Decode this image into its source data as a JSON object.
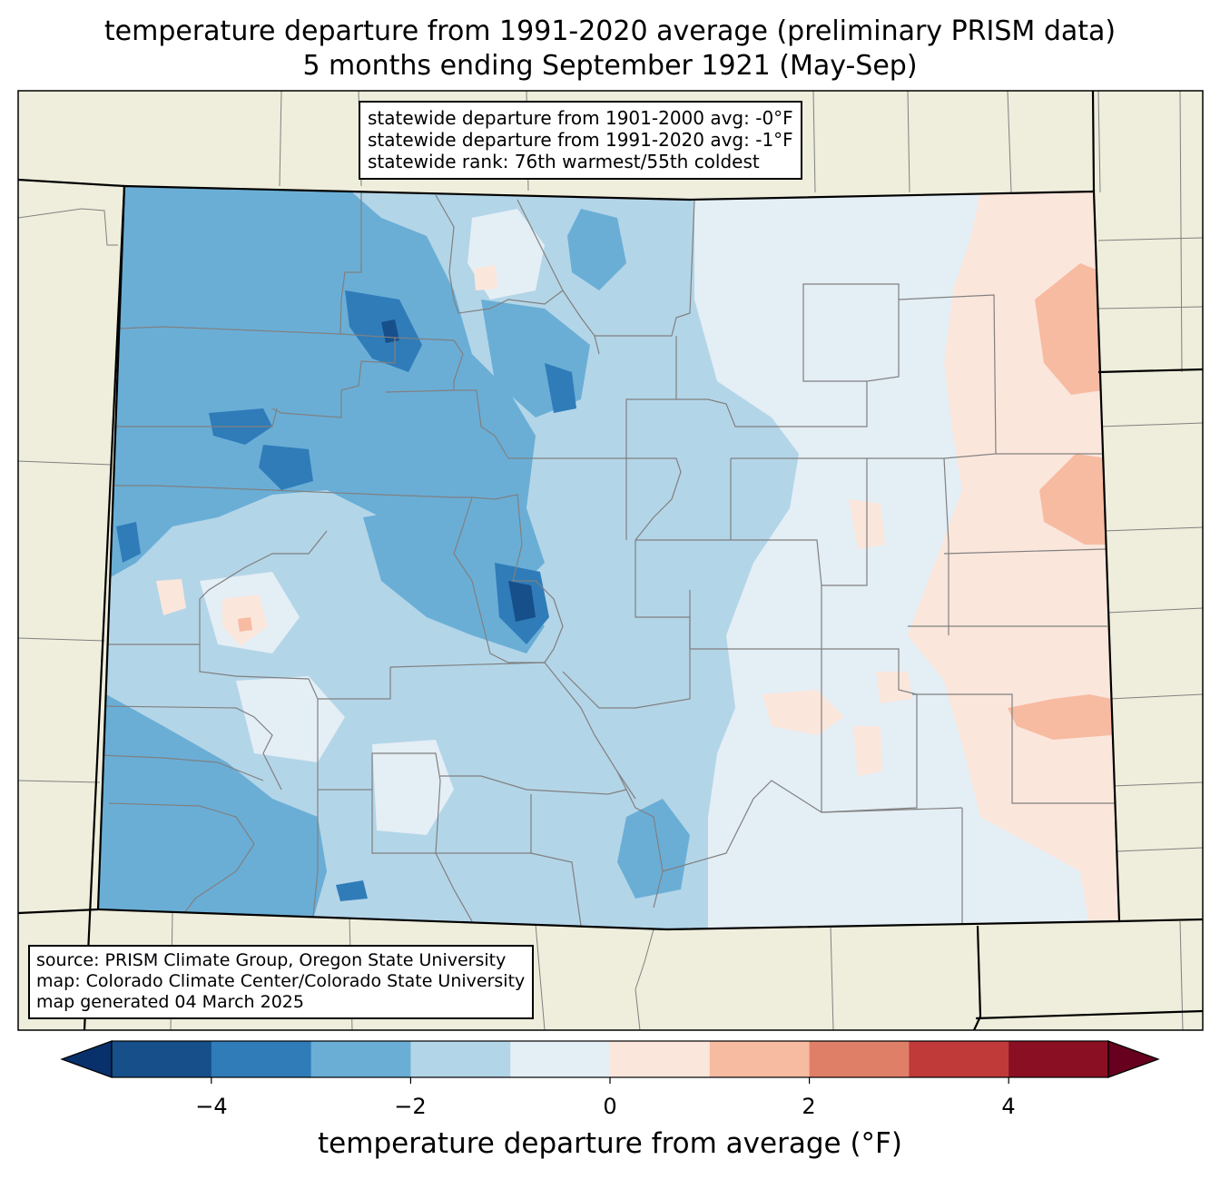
{
  "title": {
    "line1": "temperature departure from 1991-2020 average (preliminary PRISM data)",
    "line2": "5 months ending September 1921 (May-Sep)"
  },
  "stats": {
    "line1": "statewide departure from 1901-2000 avg: -0°F",
    "line2": "statewide departure from 1991-2020 avg: -1°F",
    "line3": "statewide rank: 76th warmest/55th coldest"
  },
  "source": {
    "line1": "source: PRISM Climate Group, Oregon State University",
    "line2": "map: Colorado Climate Center/Colorado State University",
    "line3": "map generated 04 March 2025"
  },
  "colorbar": {
    "label": "temperature departure from average (°F)",
    "ticks": [
      "−4",
      "−2",
      "0",
      "2",
      "4"
    ],
    "bins": [
      -5,
      -4,
      -3,
      -2,
      -1,
      0,
      1,
      2,
      3,
      4,
      5
    ],
    "colors": [
      "#08306b",
      "#164f8a",
      "#2f7cb9",
      "#6aaed6",
      "#b3d5e8",
      "#e4eef5",
      "#fbe6dc",
      "#f7bba2",
      "#e07f68",
      "#c03a3a",
      "#8a0f23",
      "#67001f"
    ]
  },
  "map_style": {
    "land_color": "#efeedc",
    "county_line_color": "#808080",
    "state_line_color": "#000000"
  }
}
